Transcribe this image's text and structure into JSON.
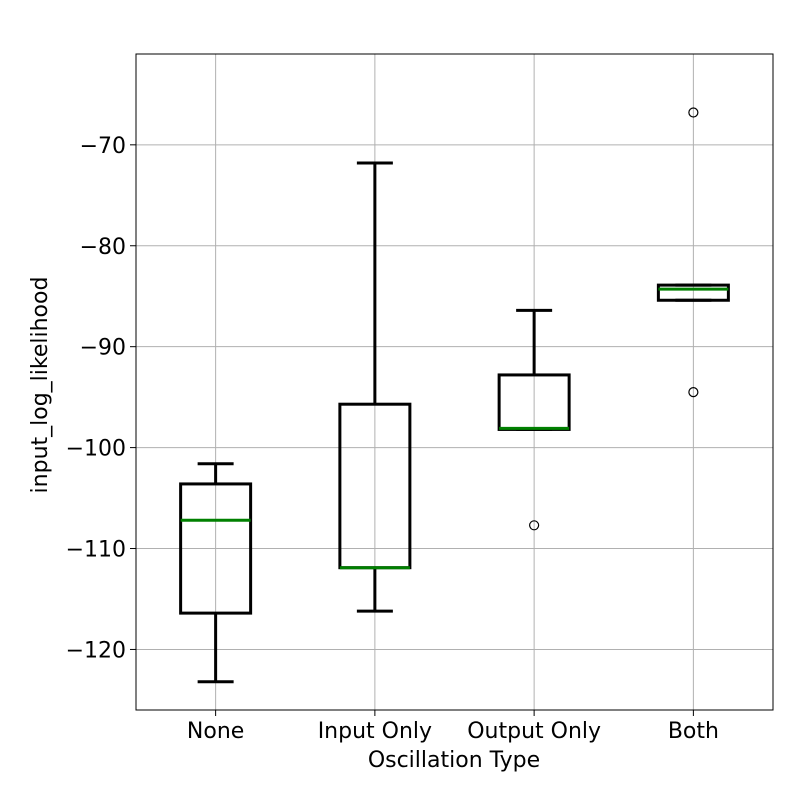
{
  "chart_data": {
    "type": "box",
    "title": "",
    "xlabel": "Oscillation Type",
    "ylabel": "input_log_likelihood",
    "ylim": [
      -126.0,
      -61.0
    ],
    "yticks": [
      -70,
      -80,
      -90,
      -100,
      -110,
      -120
    ],
    "ytick_labels": [
      "−70",
      "−80",
      "−90",
      "−100",
      "−110",
      "−120"
    ],
    "grid": true,
    "categories": [
      "None",
      "Input Only",
      "Output Only",
      "Both"
    ],
    "boxes": [
      {
        "category": "None",
        "whisker_low": -123.2,
        "q1": -116.4,
        "median": -107.2,
        "q3": -103.6,
        "whisker_high": -101.6,
        "outliers": []
      },
      {
        "category": "Input Only",
        "whisker_low": -116.2,
        "q1": -111.9,
        "median": -111.9,
        "q3": -95.7,
        "whisker_high": -71.8,
        "outliers": []
      },
      {
        "category": "Output Only",
        "whisker_low": -98.2,
        "q1": -98.2,
        "median": -98.1,
        "q3": -92.8,
        "whisker_high": -86.4,
        "outliers": [
          -107.7
        ]
      },
      {
        "category": "Both",
        "whisker_low": -85.4,
        "q1": -85.4,
        "median": -84.3,
        "q3": -83.9,
        "whisker_high": -83.9,
        "outliers": [
          -66.8,
          -94.5
        ]
      }
    ],
    "colors": {
      "box": "#000000",
      "median": "#008000",
      "grid": "#b0b0b0",
      "flier": "#000000"
    }
  }
}
